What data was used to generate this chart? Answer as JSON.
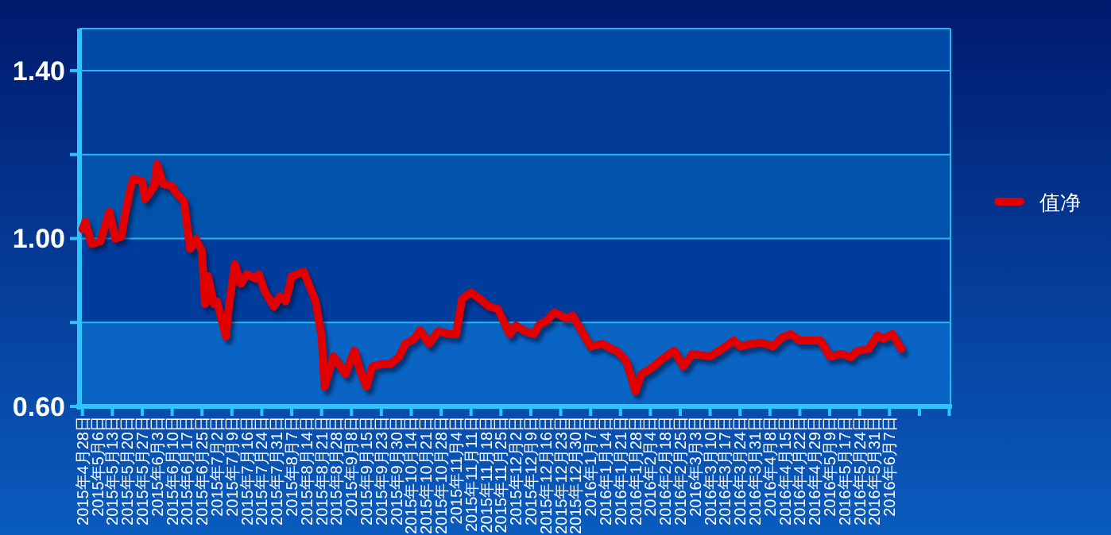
{
  "chart_data": {
    "type": "line",
    "ylim": [
      0.6,
      1.5
    ],
    "yticks": [
      {
        "value": 0.6,
        "label": "0.60"
      },
      {
        "value": 0.8,
        "label": null
      },
      {
        "value": 1.0,
        "label": "1.00"
      },
      {
        "value": 1.2,
        "label": null
      },
      {
        "value": 1.4,
        "label": "1.40"
      }
    ],
    "categories": [
      "2015年4月28日",
      null,
      null,
      null,
      null,
      "2015年5月6日",
      null,
      null,
      null,
      null,
      "2015年5月13日",
      null,
      null,
      null,
      null,
      "2015年5月20日",
      null,
      null,
      null,
      null,
      "2015年5月27日",
      null,
      null,
      null,
      null,
      "2015年6月3日",
      null,
      null,
      null,
      null,
      "2015年6月10日",
      null,
      null,
      null,
      null,
      "2015年6月17日",
      null,
      null,
      null,
      null,
      "2015年6月25日",
      null,
      null,
      null,
      null,
      "2015年7月2日",
      null,
      null,
      null,
      null,
      "2015年7月9日",
      null,
      null,
      null,
      null,
      "2015年7月16日",
      null,
      null,
      null,
      null,
      "2015年7月24日",
      null,
      null,
      null,
      null,
      "2015年7月31日",
      null,
      null,
      null,
      null,
      "2015年8月7日",
      null,
      null,
      null,
      null,
      "2015年8月14日",
      null,
      null,
      null,
      null,
      "2015年8月21日",
      null,
      null,
      null,
      null,
      "2015年8月28日",
      null,
      null,
      null,
      null,
      "2015年9月8日",
      null,
      null,
      null,
      null,
      "2015年9月15日",
      null,
      null,
      null,
      null,
      "2015年9月23日",
      null,
      null,
      null,
      null,
      "2015年9月30日",
      null,
      null,
      null,
      null,
      "2015年10月14日",
      null,
      null,
      null,
      null,
      "2015年10月21日",
      null,
      null,
      null,
      null,
      "2015年10月28日",
      null,
      null,
      null,
      null,
      "2015年11月4日",
      null,
      null,
      null,
      null,
      "2015年11月11日",
      null,
      null,
      null,
      null,
      "2015年11月18日",
      null,
      null,
      null,
      null,
      "2015年11月25日",
      null,
      null,
      null,
      null,
      "2015年12月2日",
      null,
      null,
      null,
      null,
      "2015年12月9日",
      null,
      null,
      null,
      null,
      "2015年12月16日",
      null,
      null,
      null,
      null,
      "2015年12月23日",
      null,
      null,
      null,
      null,
      "2015年12月30日",
      null,
      null,
      null,
      null,
      "2016年1月7日",
      null,
      null,
      null,
      null,
      "2016年1月14日",
      null,
      null,
      null,
      null,
      "2016年1月21日",
      null,
      null,
      null,
      null,
      "2016年1月28日",
      null,
      null,
      null,
      null,
      "2016年2月4日",
      null,
      null,
      null,
      null,
      "2016年2月18日",
      null,
      null,
      null,
      null,
      "2016年2月25日",
      null,
      null,
      null,
      null,
      "2016年3月3日",
      null,
      null,
      null,
      null,
      "2016年3月10日",
      null,
      null,
      null,
      null,
      "2016年3月17日",
      null,
      null,
      null,
      null,
      "2016年3月24日",
      null,
      null,
      null,
      null,
      "2016年3月31日",
      null,
      null,
      null,
      null,
      "2016年4月8日",
      null,
      null,
      null,
      null,
      "2016年4月15日",
      null,
      null,
      null,
      null,
      "2016年4月22日",
      null,
      null,
      null,
      null,
      "2016年4月29日",
      null,
      null,
      null,
      null,
      "2016年5月9日",
      null,
      null,
      null,
      null,
      "2016年5月17日",
      null,
      null,
      null,
      null,
      "2016年5月24日",
      null,
      null,
      null,
      null,
      "2016年5月31日",
      null,
      null,
      null,
      null,
      "2016年6月7日",
      null,
      null,
      null,
      null,
      null,
      null,
      null,
      null,
      null,
      null,
      null,
      null,
      null,
      null,
      null,
      null,
      null,
      null,
      null,
      null
    ],
    "bands": [
      {
        "axis": "y",
        "from": 0.6,
        "to": 0.8,
        "color": "#0a64c4"
      },
      {
        "axis": "y",
        "from": 0.8,
        "to": 1.0,
        "color": "#003c9c"
      },
      {
        "axis": "y",
        "from": 1.0,
        "to": 1.2,
        "color": "#0052aa"
      },
      {
        "axis": "y",
        "from": 1.2,
        "to": 1.4,
        "color": "#003a96"
      },
      {
        "axis": "y",
        "from": 1.4,
        "to": 1.5,
        "color": "#004aa6"
      }
    ],
    "grid": "y",
    "legend": "right",
    "marker": "none",
    "line_style": "solid",
    "series": [
      {
        "name": "值净",
        "color": "#e00000",
        "values": [
          1.022,
          1.04,
          null,
          0.987,
          null,
          null,
          0.993,
          null,
          null,
          1.064,
          null,
          0.999,
          null,
          1.005,
          1.046,
          null,
          1.118,
          1.142,
          null,
          null,
          1.136,
          1.094,
          null,
          null,
          1.124,
          1.177,
          null,
          1.13,
          null,
          null,
          1.124,
          1.112,
          null,
          null,
          1.088,
          null,
          0.975,
          null,
          0.999,
          null,
          0.969,
          0.844,
          0.91,
          null,
          0.844,
          0.85,
          null,
          null,
          0.767,
          0.838,
          null,
          0.939,
          null,
          0.892,
          null,
          0.915,
          null,
          null,
          0.904,
          0.915,
          null,
          0.874,
          null,
          null,
          0.838,
          null,
          0.862,
          null,
          0.85,
          null,
          0.91,
          null,
          0.915,
          null,
          0.921,
          null,
          0.886,
          null,
          0.85,
          null,
          0.767,
          0.647,
          null,
          null,
          0.719,
          null,
          null,
          null,
          0.677,
          null,
          null,
          0.733,
          null,
          0.683,
          null,
          0.647,
          null,
          0.695,
          null,
          null,
          0.701,
          null,
          null,
          0.701,
          null,
          null,
          0.719,
          null,
          0.749,
          null,
          null,
          0.761,
          null,
          0.781,
          null,
          null,
          0.749,
          null,
          null,
          0.779,
          null,
          null,
          null,
          0.772,
          null,
          0.772,
          null,
          0.856,
          null,
          null,
          0.871,
          null,
          null,
          0.856,
          null,
          null,
          0.838,
          null,
          null,
          0.832,
          null,
          null,
          null,
          0.772,
          null,
          0.793,
          null,
          null,
          0.779,
          null,
          null,
          0.772,
          null,
          0.796,
          null,
          0.802,
          null,
          null,
          0.824,
          null,
          null,
          null,
          0.809,
          null,
          0.817,
          null,
          null,
          0.779,
          null,
          null,
          0.743,
          null,
          null,
          null,
          0.749,
          null,
          null,
          0.737,
          null,
          0.731,
          null,
          null,
          0.707,
          null,
          null,
          0.636,
          null,
          0.677,
          null,
          null,
          0.689,
          null,
          null,
          null,
          0.713,
          null,
          null,
          null,
          0.733,
          null,
          null,
          0.695,
          null,
          null,
          0.725,
          null,
          null,
          null,
          null,
          null,
          0.719,
          null,
          null,
          null,
          0.737,
          null,
          null,
          null,
          0.757,
          null,
          0.743,
          null,
          null,
          null,
          0.749,
          null,
          null,
          0.752,
          null,
          null,
          null,
          0.743,
          null,
          null,
          0.764,
          null,
          null,
          0.772,
          null,
          null,
          0.757,
          null,
          null,
          0.757,
          null,
          null,
          null,
          0.757,
          null,
          null,
          0.719,
          null,
          null,
          null,
          0.725,
          null,
          null,
          0.717,
          null,
          0.731,
          null,
          null,
          null,
          0.737,
          null,
          null,
          0.769,
          null,
          0.761,
          null,
          null,
          0.772,
          null,
          null,
          0.737,
          null,
          null,
          null,
          null,
          null,
          null,
          null,
          null,
          null,
          null,
          null,
          null,
          null,
          null,
          null,
          null
        ]
      }
    ]
  }
}
